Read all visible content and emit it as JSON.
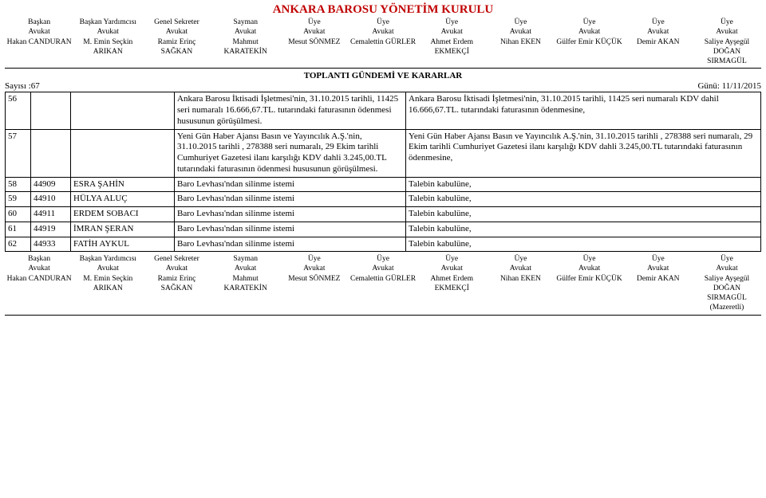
{
  "title": "ANKARA BAROSU YÖNETİM KURULU",
  "board": [
    {
      "role": "Başkan",
      "title": "Avukat",
      "name": "Hakan CANDURAN"
    },
    {
      "role": "Başkan Yardımcısı",
      "title": "Avukat",
      "name": "M. Emin Seçkin ARIKAN"
    },
    {
      "role": "Genel Sekreter",
      "title": "Avukat",
      "name": "Ramiz Erinç SAĞKAN"
    },
    {
      "role": "Sayman",
      "title": "Avukat",
      "name": "Mahmut KARATEKİN"
    },
    {
      "role": "Üye",
      "title": "Avukat",
      "name": "Mesut SÖNMEZ"
    },
    {
      "role": "Üye",
      "title": "Avukat",
      "name": "Cemalettin GÜRLER"
    },
    {
      "role": "Üye",
      "title": "Avukat",
      "name": "Ahmet Erdem EKMEKÇİ"
    },
    {
      "role": "Üye",
      "title": "Avukat",
      "name": "Nihan EKEN"
    },
    {
      "role": "Üye",
      "title": "Avukat",
      "name": "Gülfer Emir KÜÇÜK"
    },
    {
      "role": "Üye",
      "title": "Avukat",
      "name": "Demir AKAN"
    },
    {
      "role": "Üye",
      "title": "Avukat",
      "name": "Saliye Ayşegül DOĞAN SIRMAGÜL"
    }
  ],
  "agenda_header": "TOPLANTI GÜNDEMİ VE KARARLAR",
  "count_label": "Sayısı :67",
  "date_label": "Günü: 11/11/2015",
  "rows": [
    {
      "no": "56",
      "reg": "",
      "name": "",
      "subject": "Ankara Barosu İktisadi İşletmesi'nin, 31.10.2015 tarihli, 11425 seri numaralı 16.666,67.TL. tutarındaki faturasının ödenmesi hususunun görüşülmesi.",
      "decision": "Ankara Barosu İktisadi İşletmesi'nin, 31.10.2015 tarihli, 11425 seri numaralı KDV dahil 16.666,67.TL. tutarındaki faturasının ödenmesine,"
    },
    {
      "no": "57",
      "reg": "",
      "name": "",
      "subject": "Yeni Gün Haber Ajansı Basın ve Yayıncılık A.Ş.'nin, 31.10.2015 tarihli , 278388 seri numaralı, 29 Ekim tarihli Cumhuriyet Gazetesi ilanı karşılığı KDV dahli 3.245,00.TL tutarındaki faturasının ödenmesi hususunun görüşülmesi.",
      "decision": "Yeni Gün Haber Ajansı Basın ve Yayıncılık A.Ş.'nin, 31.10.2015 tarihli , 278388 seri numaralı, 29 Ekim tarihli Cumhuriyet Gazetesi ilanı karşılığı KDV dahli 3.245,00.TL tutarındaki faturasının ödenmesine,"
    },
    {
      "no": "58",
      "reg": "44909",
      "name": "ESRA ŞAHİN",
      "subject": "Baro Levhası'ndan silinme istemi",
      "decision": "Talebin kabulüne,"
    },
    {
      "no": "59",
      "reg": "44910",
      "name": "HÜLYA ALUÇ",
      "subject": "Baro Levhası'ndan silinme istemi",
      "decision": "Talebin kabulüne,"
    },
    {
      "no": "60",
      "reg": "44911",
      "name": "ERDEM SOBACI",
      "subject": "Baro Levhası'ndan silinme istemi",
      "decision": "Talebin kabulüne,"
    },
    {
      "no": "61",
      "reg": "44919",
      "name": "İMRAN ŞERAN",
      "subject": "Baro Levhası'ndan silinme istemi",
      "decision": "Talebin kabulüne,"
    },
    {
      "no": "62",
      "reg": "44933",
      "name": "FATİH AYKUL",
      "subject": "Baro Levhası'ndan silinme istemi",
      "decision": "Talebin kabulüne,"
    }
  ],
  "mazeretli": "(Mazeretli)"
}
